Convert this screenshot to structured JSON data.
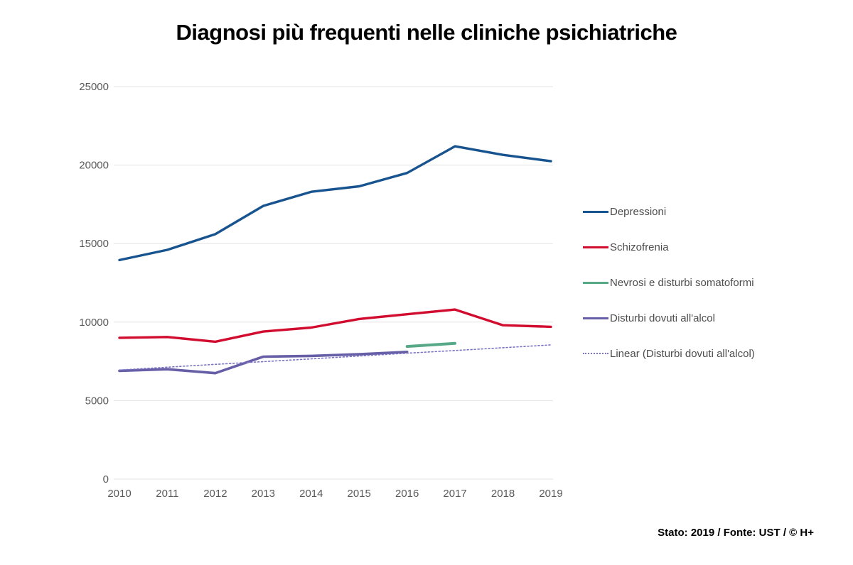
{
  "title": "Diagnosi più frequenti nelle cliniche psichiatriche",
  "footer": "Stato: 2019 / Fonte: UST / © H+",
  "colors": {
    "gridline": "#e3e3e3",
    "axis_text": "#595959",
    "legend_text": "#4d4d4d"
  },
  "chart_data": {
    "type": "line",
    "title": "Diagnosi più frequenti nelle cliniche psichiatriche",
    "x": [
      2010,
      2011,
      2012,
      2013,
      2014,
      2015,
      2016,
      2017,
      2018,
      2019
    ],
    "xlabel": "",
    "ylabel": "",
    "ylim": [
      0,
      25000
    ],
    "y_ticks": [
      0,
      5000,
      10000,
      15000,
      20000,
      25000
    ],
    "grid": "horizontal",
    "legend_position": "right",
    "series": [
      {
        "name": "Depressioni",
        "color": "#17538f",
        "style": "solid",
        "width": 3.4,
        "x_start": 2010,
        "values": [
          13950,
          14600,
          15600,
          17400,
          18300,
          18650,
          19500,
          21200,
          20650,
          20250
        ]
      },
      {
        "name": "Schizofrenia",
        "color": "#d10c2e",
        "style": "solid",
        "width": 3.4,
        "x_start": 2010,
        "values": [
          9000,
          9050,
          8750,
          9400,
          9650,
          10200,
          10500,
          10800,
          9800,
          9700
        ]
      },
      {
        "name": "Nevrosi e disturbi somatoformi",
        "color": "#56a886",
        "style": "solid",
        "width": 4,
        "x_start": 2016,
        "values": [
          8450,
          8650
        ]
      },
      {
        "name": "Disturbi dovuti all'alcol",
        "color": "#665fa7",
        "style": "solid",
        "width": 3.6,
        "x_start": 2010,
        "values": [
          6900,
          7000,
          6750,
          7800,
          7850,
          7950,
          8100
        ]
      },
      {
        "name": "Linear (Disturbi dovuti all'alcol)",
        "color": "#7b74c4",
        "style": "dotted",
        "width": 1.6,
        "x_start": 2010,
        "values": [
          6950,
          7130,
          7310,
          7480,
          7660,
          7840,
          8020,
          8190,
          8370,
          8550
        ]
      }
    ]
  }
}
